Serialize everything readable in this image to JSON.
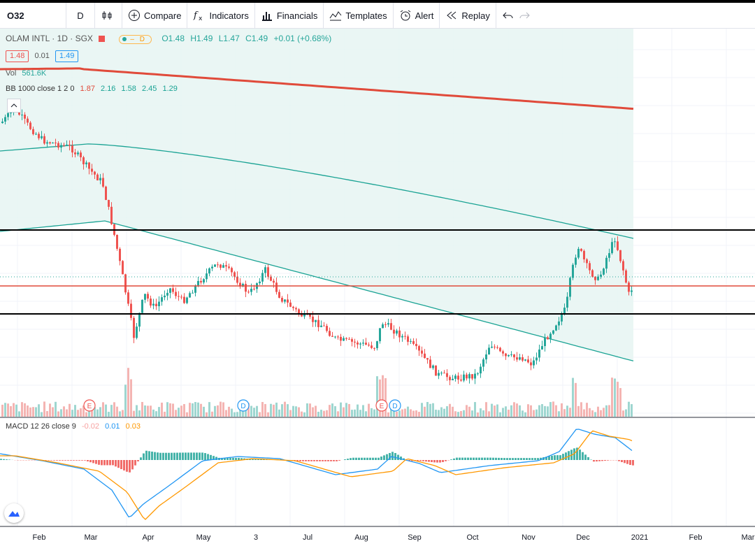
{
  "toolbar": {
    "symbol": "O32",
    "interval": "D",
    "compare": "Compare",
    "indicators": "Indicators",
    "financials": "Financials",
    "templates": "Templates",
    "alert": "Alert",
    "replay": "Replay"
  },
  "legend": {
    "title": "OLAM INTL · 1D · SGX",
    "flag_letter": "D",
    "ohlc": {
      "o": "O1.48",
      "h": "H1.49",
      "l": "L1.47",
      "c": "C1.49",
      "change": "+0.01 (+0.68%)"
    },
    "bid": "1.48",
    "spread": "0.01",
    "ask": "1.49",
    "vol_label": "Vol",
    "vol_value": "561.6K",
    "bb_label": "BB 1000 close 1 2 0",
    "bb_values": [
      "1.87",
      "2.16",
      "1.58",
      "2.45",
      "1.29"
    ],
    "macd_label": "MACD 12 26 close 9",
    "macd_values": [
      "-0.02",
      "0.01",
      "0.03"
    ]
  },
  "x_axis": [
    "Feb",
    "Mar",
    "Apr",
    "May",
    "3",
    "Jul",
    "Aug",
    "Sep",
    "Oct",
    "Nov",
    "Dec",
    "2021",
    "Feb",
    "Mar"
  ],
  "events": [
    {
      "letter": "E"
    },
    {
      "letter": "D"
    },
    {
      "letter": "E"
    },
    {
      "letter": "D"
    }
  ],
  "colors": {
    "up": "#26a69a",
    "down": "#ef5350",
    "ma_red": "#e04a3a",
    "bb_teal": "#1aa394",
    "macd": "#2196f3",
    "signal": "#ff9800"
  }
}
